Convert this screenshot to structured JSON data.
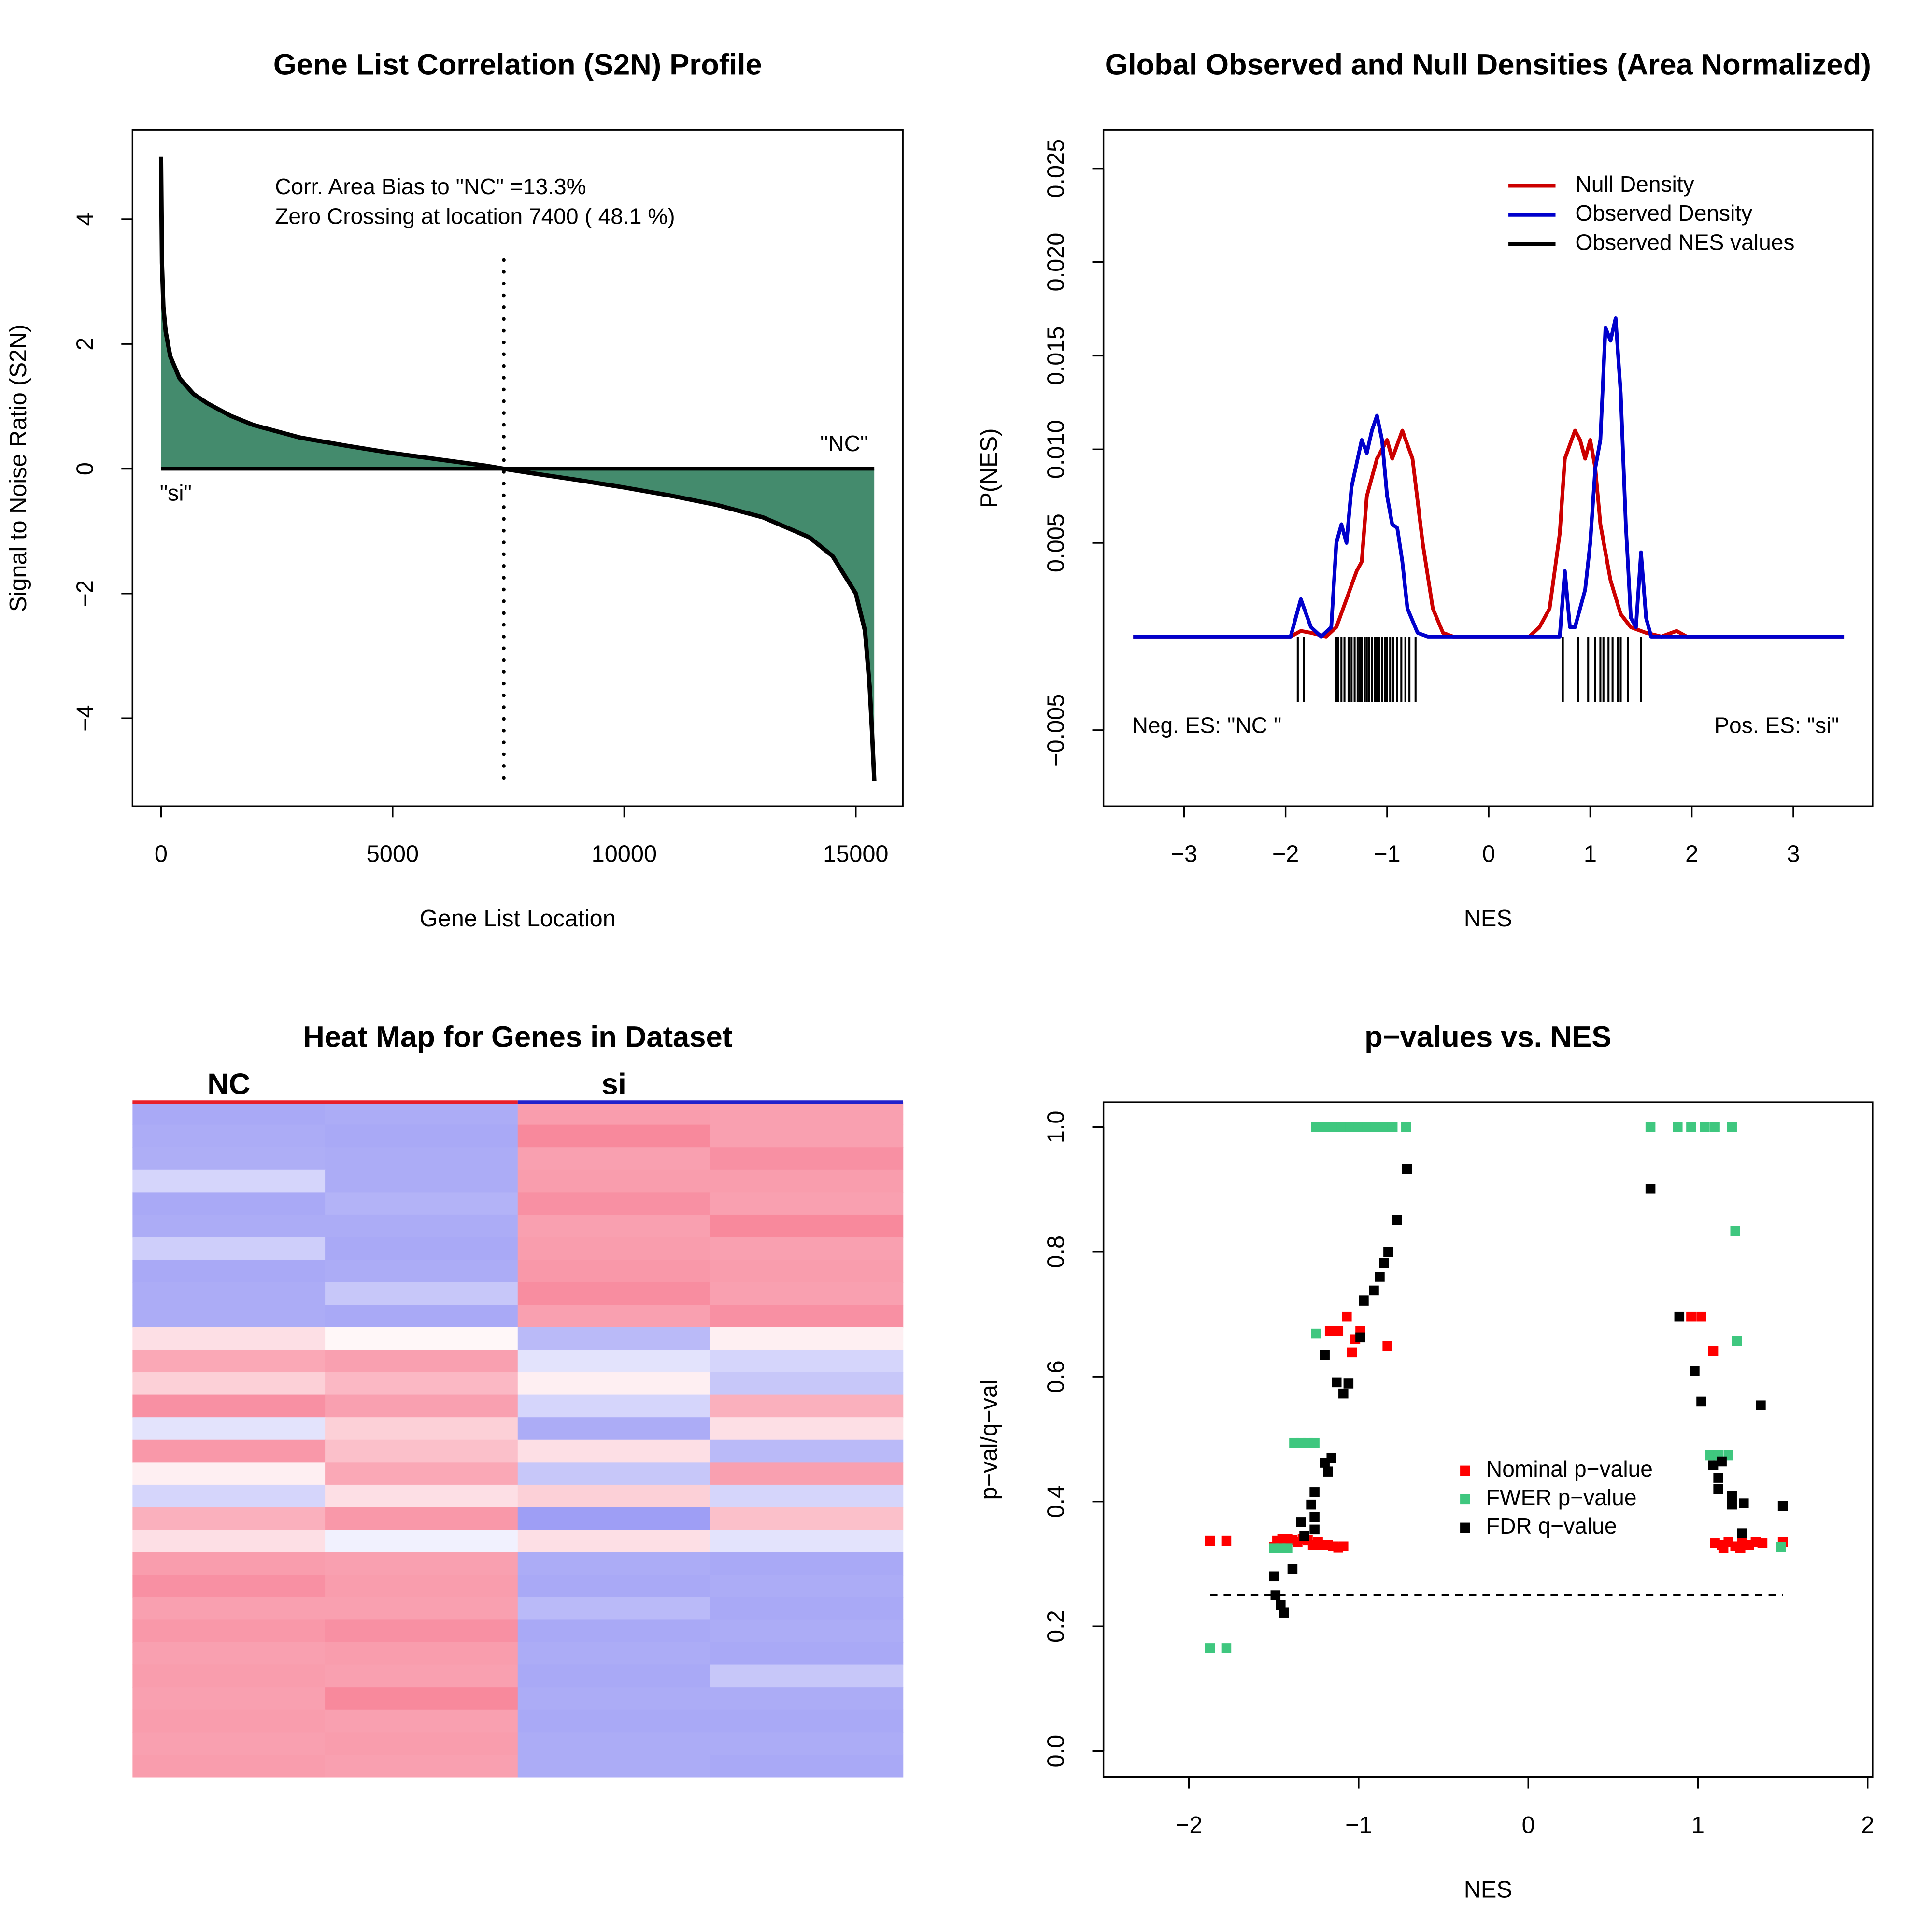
{
  "chart_data": [
    {
      "type": "area",
      "title": "Gene List Correlation (S2N) Profile",
      "xlabel": "Gene List Location",
      "ylabel": "Signal to Noise Ratio (S2N)",
      "annotations": [
        "Corr. Area Bias to \"NC\" =13.3%",
        "Zero Crossing at location  7400  ( 48.1  %)"
      ],
      "class_labels": [
        "\"si\"",
        "\"NC\""
      ],
      "zero_crossing": 7400,
      "x": [
        0,
        20,
        50,
        100,
        200,
        400,
        700,
        1000,
        1500,
        2000,
        3000,
        4000,
        5000,
        6000,
        7000,
        7400,
        8000,
        9000,
        10000,
        11000,
        12000,
        13000,
        14000,
        14500,
        15000,
        15200,
        15300,
        15350,
        15400
      ],
      "values": [
        5.0,
        3.3,
        2.6,
        2.2,
        1.8,
        1.45,
        1.2,
        1.05,
        0.85,
        0.7,
        0.5,
        0.37,
        0.25,
        0.15,
        0.05,
        0,
        -0.07,
        -0.18,
        -0.3,
        -0.43,
        -0.58,
        -0.78,
        -1.1,
        -1.4,
        -2.0,
        -2.6,
        -3.5,
        -4.2,
        -5.0
      ],
      "color": "#448b6d",
      "xlim": [
        -616,
        16016
      ],
      "ylim": [
        -5.41,
        5.43
      ],
      "xticks": [
        0,
        5000,
        10000,
        15000
      ],
      "yticks": [
        {
          "value": -4,
          "label": "−4"
        },
        {
          "value": -2,
          "label": "−2"
        },
        0,
        2,
        4
      ]
    },
    {
      "type": "density",
      "title": "Global Observed and Null Densities (Area Normalized)",
      "xlabel": "NES",
      "ylabel": "P(NES)",
      "annotations": [
        "Neg. ES: \"NC \"",
        "Pos. ES: \"si\""
      ],
      "legend": "top-right",
      "series": [
        {
          "name": "Null Density",
          "color": "#cc0000",
          "x": [
            -3.5,
            -1.95,
            -1.85,
            -1.75,
            -1.6,
            -1.5,
            -1.4,
            -1.3,
            -1.25,
            -1.2,
            -1.1,
            -1.0,
            -0.95,
            -0.85,
            -0.75,
            -0.65,
            -0.55,
            -0.45,
            -0.35,
            0.4,
            0.5,
            0.6,
            0.7,
            0.75,
            0.85,
            0.9,
            0.95,
            1.0,
            1.05,
            1.1,
            1.2,
            1.3,
            1.4,
            1.55,
            1.7,
            1.85,
            1.95,
            3.5
          ],
          "values": [
            0,
            0,
            0.0003,
            0.0002,
            0,
            0.0005,
            0.002,
            0.0035,
            0.004,
            0.0075,
            0.0095,
            0.0105,
            0.0095,
            0.011,
            0.0095,
            0.005,
            0.0015,
            0.0002,
            0,
            0,
            0.0005,
            0.0015,
            0.0055,
            0.0095,
            0.011,
            0.0105,
            0.0095,
            0.0105,
            0.009,
            0.006,
            0.003,
            0.0012,
            0.0005,
            0.0002,
            0,
            0.0003,
            0,
            0
          ]
        },
        {
          "name": "Observed Density",
          "color": "#0000cc",
          "x": [
            -3.5,
            -1.95,
            -1.85,
            -1.75,
            -1.65,
            -1.55,
            -1.5,
            -1.45,
            -1.4,
            -1.35,
            -1.25,
            -1.2,
            -1.15,
            -1.1,
            -1.05,
            -1.0,
            -0.95,
            -0.9,
            -0.85,
            -0.8,
            -0.7,
            -0.6,
            0.7,
            0.75,
            0.8,
            0.85,
            0.95,
            1.0,
            1.05,
            1.1,
            1.15,
            1.2,
            1.25,
            1.3,
            1.35,
            1.4,
            1.45,
            1.5,
            1.55,
            1.6,
            3.5
          ],
          "values": [
            0,
            0,
            0.002,
            0.0005,
            0,
            0.0005,
            0.005,
            0.006,
            0.005,
            0.008,
            0.0105,
            0.0098,
            0.011,
            0.0118,
            0.0105,
            0.0075,
            0.006,
            0.0058,
            0.004,
            0.0015,
            0.0002,
            0,
            0,
            0.0035,
            0.0005,
            0.0005,
            0.0025,
            0.005,
            0.009,
            0.0105,
            0.0165,
            0.0158,
            0.017,
            0.013,
            0.006,
            0.001,
            0.0005,
            0.0045,
            0.001,
            0,
            0
          ]
        }
      ],
      "rug": {
        "name": "Observed NES values",
        "color": "#000000",
        "values": [
          -1.88,
          -1.82,
          -1.5,
          -1.48,
          -1.45,
          -1.42,
          -1.38,
          -1.35,
          -1.32,
          -1.29,
          -1.27,
          -1.25,
          -1.22,
          -1.2,
          -1.18,
          -1.15,
          -1.12,
          -1.1,
          -1.08,
          -1.05,
          -1.02,
          -1.0,
          -0.97,
          -0.94,
          -0.9,
          -0.86,
          -0.82,
          -0.78,
          -0.72,
          0.73,
          0.88,
          0.98,
          1.05,
          1.1,
          1.13,
          1.18,
          1.22,
          1.27,
          1.3,
          1.37,
          1.5
        ]
      },
      "xlim": [
        -3.793,
        3.78
      ],
      "ylim": [
        -0.00906,
        0.02705
      ],
      "xticks": [
        {
          "value": -3,
          "label": "−3"
        },
        {
          "value": -2,
          "label": "−2"
        },
        {
          "value": -1,
          "label": "−1"
        },
        0,
        1,
        2,
        3
      ],
      "yticks": [
        {
          "value": -0.005,
          "label": "−0.005"
        },
        0.005,
        {
          "value": 0.01,
          "label": "0.010"
        },
        0.015,
        {
          "value": 0.02,
          "label": "0.020"
        },
        0.025
      ]
    },
    {
      "type": "heatmap",
      "title": "Heat Map for Genes in Dataset",
      "groups": [
        {
          "name": "NC",
          "color": "#e8202a"
        },
        {
          "name": "si",
          "color": "#2222cc"
        }
      ],
      "colors": {
        "low": "#7474f0",
        "mid": "#ffffff",
        "high": "#f5617b"
      },
      "rows": [
        [
          -0.62,
          -0.6,
          0.62,
          0.6
        ],
        [
          -0.6,
          -0.62,
          0.75,
          0.6
        ],
        [
          -0.58,
          -0.6,
          0.6,
          0.7
        ],
        [
          -0.3,
          -0.6,
          0.62,
          0.62
        ],
        [
          -0.62,
          -0.55,
          0.7,
          0.6
        ],
        [
          -0.6,
          -0.6,
          0.6,
          0.75
        ],
        [
          -0.35,
          -0.62,
          0.62,
          0.6
        ],
        [
          -0.62,
          -0.6,
          0.65,
          0.62
        ],
        [
          -0.6,
          -0.4,
          0.72,
          0.6
        ],
        [
          -0.6,
          -0.62,
          0.6,
          0.7
        ],
        [
          0.2,
          0.05,
          -0.5,
          0.1
        ],
        [
          0.55,
          0.6,
          -0.2,
          -0.3
        ],
        [
          0.3,
          0.45,
          0.1,
          -0.4
        ],
        [
          0.7,
          0.6,
          -0.3,
          0.5
        ],
        [
          -0.2,
          0.3,
          -0.6,
          0.2
        ],
        [
          0.65,
          0.4,
          0.2,
          -0.5
        ],
        [
          0.1,
          0.55,
          -0.4,
          0.6
        ],
        [
          -0.3,
          0.2,
          0.3,
          -0.3
        ],
        [
          0.5,
          0.65,
          -0.7,
          0.4
        ],
        [
          0.2,
          -0.1,
          0.2,
          -0.2
        ],
        [
          0.62,
          0.6,
          -0.6,
          -0.62
        ],
        [
          0.7,
          0.62,
          -0.62,
          -0.6
        ],
        [
          0.6,
          0.6,
          -0.5,
          -0.62
        ],
        [
          0.65,
          0.7,
          -0.62,
          -0.6
        ],
        [
          0.6,
          0.62,
          -0.6,
          -0.62
        ],
        [
          0.62,
          0.6,
          -0.62,
          -0.4
        ],
        [
          0.6,
          0.75,
          -0.6,
          -0.6
        ],
        [
          0.62,
          0.6,
          -0.62,
          -0.62
        ],
        [
          0.6,
          0.62,
          -0.6,
          -0.6
        ],
        [
          0.62,
          0.6,
          -0.6,
          -0.62
        ]
      ]
    },
    {
      "type": "scatter",
      "title": "p−values vs. NES",
      "xlabel": "NES",
      "ylabel": "p−val/q−val",
      "legend": "center-right",
      "hline": 0.25,
      "series": [
        {
          "name": "Nominal p−value",
          "color": "#ff0000",
          "x": [
            -1.876,
            -1.78,
            -1.5,
            -1.48,
            -1.45,
            -1.42,
            -1.39,
            -1.36,
            -1.33,
            -1.3,
            -1.27,
            -1.24,
            -1.21,
            -1.18,
            -1.15,
            -1.12,
            -1.09,
            -1.07,
            -1.12,
            -0.99,
            -1.04,
            -0.83,
            -1.02,
            -1.17,
            0.96,
            1.02,
            1.09,
            1.1,
            1.14,
            1.18,
            1.22,
            1.26,
            1.3,
            1.34,
            1.38,
            1.5,
            1.15,
            1.25
          ],
          "values": [
            0.337,
            0.337,
            0.327,
            0.337,
            0.34,
            0.34,
            0.338,
            0.335,
            0.34,
            0.338,
            0.33,
            0.335,
            0.33,
            0.33,
            0.328,
            0.326,
            0.328,
            0.696,
            0.673,
            0.673,
            0.639,
            0.649,
            0.66,
            0.673,
            0.696,
            0.696,
            0.641,
            0.333,
            0.33,
            0.335,
            0.328,
            0.335,
            0.33,
            0.335,
            0.333,
            0.335,
            0.325,
            0.325
          ]
        },
        {
          "name": "FWER p−value",
          "color": "#3fc77f",
          "x": [
            -1.876,
            -1.78,
            -1.5,
            -1.46,
            -1.42,
            -1.38,
            -1.34,
            -1.3,
            -1.26,
            -1.25,
            -1.25,
            -1.2,
            -1.15,
            -1.1,
            -1.05,
            -1.0,
            -0.95,
            -0.9,
            -0.85,
            -0.8,
            -0.72,
            0.72,
            0.88,
            0.96,
            1.04,
            1.1,
            1.2,
            1.22,
            1.23,
            1.07,
            1.12,
            1.18,
            1.49
          ],
          "values": [
            0.165,
            0.165,
            0.325,
            0.325,
            0.325,
            0.494,
            0.494,
            0.494,
            0.494,
            0.669,
            1,
            1,
            1,
            1,
            1,
            1,
            1,
            1,
            1,
            1,
            1,
            1,
            1,
            1,
            1,
            1,
            1,
            0.833,
            0.657,
            0.474,
            0.474,
            0.474,
            0.327
          ]
        },
        {
          "name": "FDR q−value",
          "color": "#000000",
          "x": [
            -0.715,
            -0.774,
            -0.825,
            -0.85,
            -0.876,
            -0.91,
            -0.97,
            -0.99,
            -1.2,
            -1.06,
            -1.13,
            -1.09,
            -1.16,
            -1.2,
            -1.18,
            -1.26,
            -1.28,
            -1.26,
            -1.34,
            -1.26,
            -1.32,
            -1.39,
            -1.5,
            -1.49,
            -1.46,
            -1.44,
            0.72,
            0.89,
            0.98,
            1.02,
            1.37,
            1.09,
            1.14,
            1.12,
            1.12,
            1.2,
            1.2,
            1.27,
            1.5,
            1.26
          ],
          "values": [
            0.933,
            0.851,
            0.8,
            0.782,
            0.76,
            0.738,
            0.722,
            0.663,
            0.635,
            0.589,
            0.591,
            0.573,
            0.47,
            0.462,
            0.448,
            0.415,
            0.395,
            0.375,
            0.367,
            0.355,
            0.345,
            0.292,
            0.28,
            0.25,
            0.234,
            0.222,
            0.901,
            0.696,
            0.609,
            0.56,
            0.554,
            0.458,
            0.464,
            0.438,
            0.42,
            0.409,
            0.395,
            0.397,
            0.393,
            0.349
          ]
        }
      ],
      "xlim": [
        -2.504,
        2.029
      ],
      "ylim": [
        -0.0417,
        1.0397
      ],
      "xticks": [
        {
          "value": -2,
          "label": "−2"
        },
        {
          "value": -1,
          "label": "−1"
        },
        0,
        1,
        2
      ],
      "yticks": [
        {
          "value": 0,
          "label": "0.0"
        },
        0.2,
        0.4,
        0.6,
        0.8,
        {
          "value": 1,
          "label": "1.0"
        }
      ]
    }
  ]
}
